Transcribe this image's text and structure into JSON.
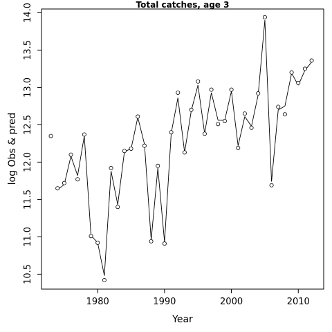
{
  "chart_data": {
    "type": "line",
    "title": "Total catches, age 3",
    "xlabel": "Year",
    "ylabel": "log Obs & pred",
    "xlim": [
      1971.6,
      2013.8
    ],
    "ylim": [
      10.3,
      14.05
    ],
    "x_ticks": [
      1980,
      1990,
      2000,
      2010
    ],
    "y_ticks": [
      10.5,
      11.0,
      11.5,
      12.0,
      12.5,
      13.0,
      13.5,
      14.0
    ],
    "series": [
      {
        "style": "points",
        "marker": "open-circle",
        "x": [
          1973,
          1974,
          1975,
          1976,
          1977,
          1978,
          1979,
          1980,
          1981,
          1982,
          1983,
          1984,
          1985,
          1986,
          1987,
          1988,
          1989,
          1990,
          1991,
          1992,
          1993,
          1994,
          1995,
          1996,
          1997,
          1998,
          1999,
          2000,
          2001,
          2002,
          2003,
          2004,
          2005,
          2006,
          2007,
          2008,
          2009,
          2010,
          2011,
          2012
        ],
        "values": [
          12.35,
          11.65,
          11.72,
          12.1,
          11.77,
          12.37,
          11.01,
          10.92,
          10.42,
          11.92,
          11.4,
          12.15,
          12.18,
          12.61,
          12.22,
          10.94,
          11.95,
          10.91,
          12.4,
          12.93,
          12.13,
          12.7,
          13.08,
          12.38,
          12.97,
          12.51,
          12.55,
          12.97,
          12.19,
          12.65,
          12.46,
          12.92,
          13.94,
          11.69,
          12.74,
          12.64,
          13.2,
          13.06,
          13.25,
          13.36
        ]
      },
      {
        "style": "line",
        "x": [
          1974,
          1975,
          1976,
          1977,
          1978,
          1979,
          1980,
          1981,
          1982,
          1983,
          1984,
          1985,
          1986,
          1987,
          1988,
          1989,
          1990,
          1991,
          1992,
          1993,
          1994,
          1995,
          1996,
          1997,
          1998,
          1999,
          2000,
          2001,
          2002,
          2003,
          2004,
          2005,
          2006,
          2007,
          2008,
          2009,
          2010,
          2011,
          2012
        ],
        "values": [
          11.63,
          11.7,
          12.08,
          11.82,
          12.35,
          11.02,
          10.92,
          10.48,
          11.88,
          11.43,
          12.14,
          12.18,
          12.6,
          12.24,
          10.96,
          11.92,
          10.93,
          12.39,
          12.86,
          12.13,
          12.69,
          13.03,
          12.38,
          12.93,
          12.56,
          12.56,
          12.95,
          12.22,
          12.61,
          12.48,
          12.9,
          13.9,
          11.74,
          12.7,
          12.75,
          13.19,
          13.03,
          13.23,
          13.34
        ]
      }
    ],
    "grid": false
  }
}
